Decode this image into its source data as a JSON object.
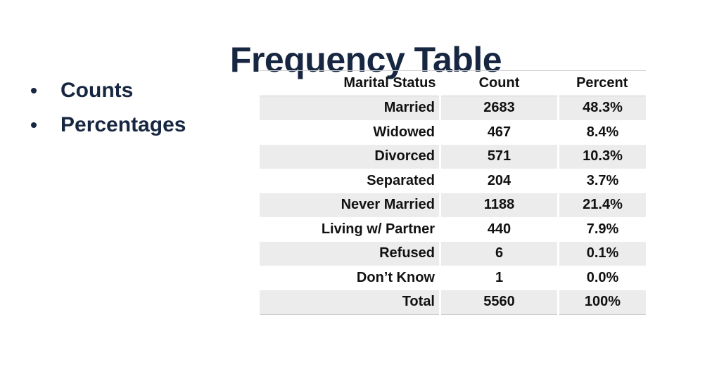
{
  "title": "Frequency Table",
  "bullets": [
    "Counts",
    "Percentages"
  ],
  "table": {
    "headers": [
      "Marital Status",
      "Count",
      "Percent"
    ],
    "rows": [
      [
        "Married",
        "2683",
        "48.3%"
      ],
      [
        "Widowed",
        "467",
        "8.4%"
      ],
      [
        "Divorced",
        "571",
        "10.3%"
      ],
      [
        "Separated",
        "204",
        "3.7%"
      ],
      [
        "Never Married",
        "1188",
        "21.4%"
      ],
      [
        "Living w/ Partner",
        "440",
        "7.9%"
      ],
      [
        "Refused",
        "6",
        "0.1%"
      ],
      [
        "Don’t Know",
        "1",
        "0.0%"
      ],
      [
        "Total",
        "5560",
        "100%"
      ]
    ]
  },
  "colors": {
    "title": "#172641",
    "row_shade": "#ececec"
  }
}
